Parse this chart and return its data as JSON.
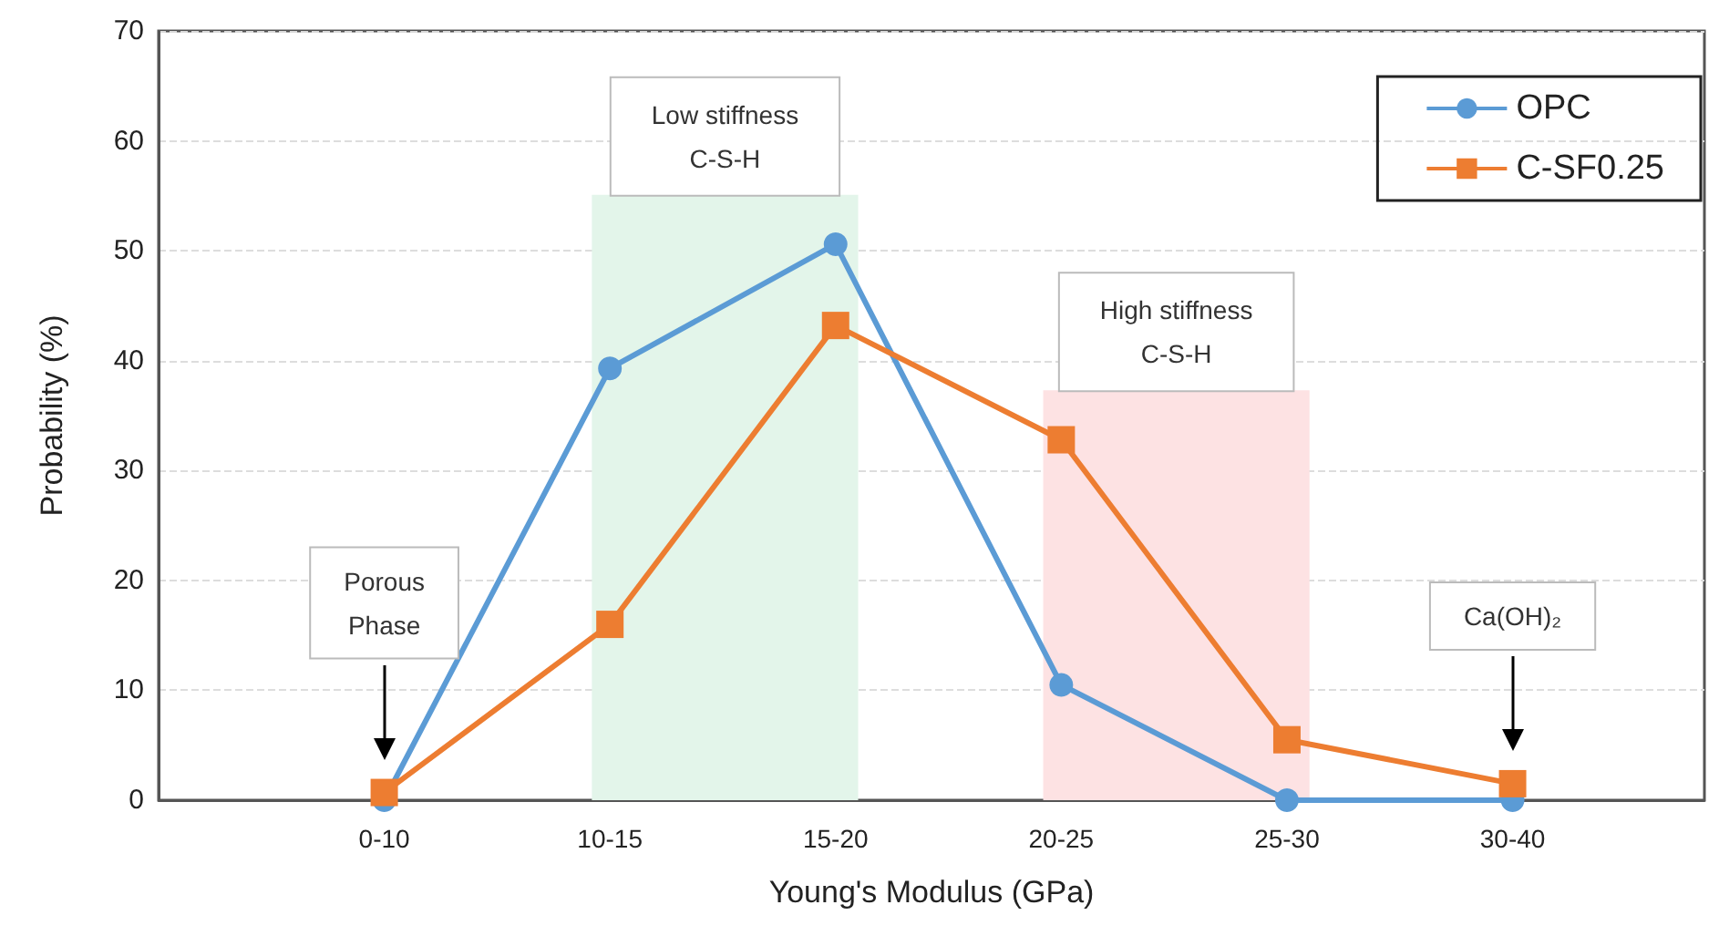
{
  "chart_data": {
    "type": "line",
    "xlabel": "Young's Modulus (GPa)",
    "ylabel": "Probability (%)",
    "categories": [
      "0-10",
      "10-15",
      "15-20",
      "20-25",
      "25-30",
      "30-40"
    ],
    "series": [
      {
        "name": "OPC",
        "color": "#5b9bd5",
        "marker": "circle",
        "values": [
          0,
          39.3,
          50.6,
          10.5,
          0,
          0
        ]
      },
      {
        "name": "C-SF0.25",
        "color": "#ed7d31",
        "marker": "square",
        "values": [
          0.7,
          16,
          43.2,
          32.8,
          5.5,
          1.5
        ]
      }
    ],
    "ylim": [
      0,
      70
    ],
    "yticks": [
      0,
      10,
      20,
      30,
      40,
      50,
      60,
      70
    ],
    "bands": [
      {
        "axis": "x",
        "from": "10-15",
        "to": "15-20",
        "label": "Low stiffness\nC-S-H",
        "color": "#e3f5ea"
      },
      {
        "axis": "x",
        "from": "20-25",
        "to": "25-30",
        "label": "High stiffness\nC-S-H",
        "color": "#fde2e3"
      }
    ],
    "annotations": [
      {
        "text": "Porous\nPhase",
        "x": "0-10"
      },
      {
        "text": "Ca(OH)₂",
        "x": "30-40"
      }
    ],
    "grid": "y",
    "legend": "top right",
    "line_style": "solid"
  }
}
